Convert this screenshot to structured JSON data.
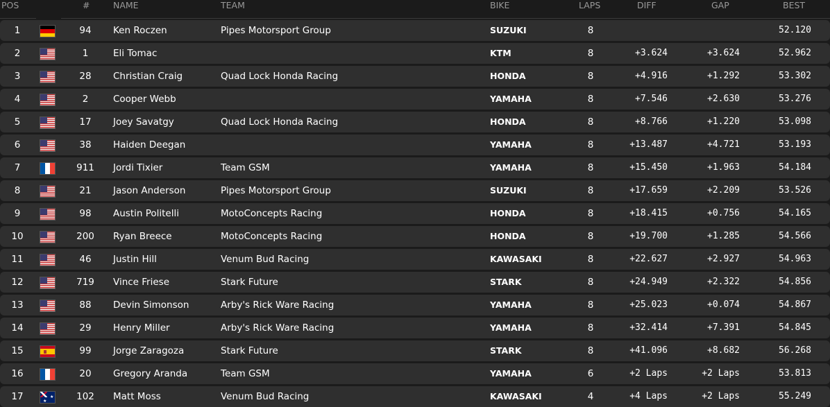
{
  "columns": {
    "pos": "POS",
    "num": "#",
    "name": "NAME",
    "team": "TEAM",
    "bike": "BIKE",
    "laps": "LAPS",
    "diff": "DIFF",
    "gap": "GAP",
    "best": "BEST"
  },
  "rows": [
    {
      "pos": "1",
      "flag": "de",
      "num": "94",
      "name": "Ken Roczen",
      "team": "Pipes Motorsport Group",
      "bike": "SUZUKI",
      "laps": "8",
      "diff": "",
      "gap": "",
      "best": "52.120"
    },
    {
      "pos": "2",
      "flag": "us",
      "num": "1",
      "name": "Eli Tomac",
      "team": "",
      "bike": "KTM",
      "laps": "8",
      "diff": "+3.624",
      "gap": "+3.624",
      "best": "52.962"
    },
    {
      "pos": "3",
      "flag": "us",
      "num": "28",
      "name": "Christian Craig",
      "team": "Quad Lock Honda Racing",
      "bike": "HONDA",
      "laps": "8",
      "diff": "+4.916",
      "gap": "+1.292",
      "best": "53.302"
    },
    {
      "pos": "4",
      "flag": "us",
      "num": "2",
      "name": "Cooper Webb",
      "team": "",
      "bike": "YAMAHA",
      "laps": "8",
      "diff": "+7.546",
      "gap": "+2.630",
      "best": "53.276"
    },
    {
      "pos": "5",
      "flag": "us",
      "num": "17",
      "name": "Joey Savatgy",
      "team": "Quad Lock Honda Racing",
      "bike": "HONDA",
      "laps": "8",
      "diff": "+8.766",
      "gap": "+1.220",
      "best": "53.098"
    },
    {
      "pos": "6",
      "flag": "us",
      "num": "38",
      "name": "Haiden Deegan",
      "team": "",
      "bike": "YAMAHA",
      "laps": "8",
      "diff": "+13.487",
      "gap": "+4.721",
      "best": "53.193"
    },
    {
      "pos": "7",
      "flag": "fr",
      "num": "911",
      "name": "Jordi Tixier",
      "team": "Team GSM",
      "bike": "YAMAHA",
      "laps": "8",
      "diff": "+15.450",
      "gap": "+1.963",
      "best": "54.184"
    },
    {
      "pos": "8",
      "flag": "us",
      "num": "21",
      "name": "Jason Anderson",
      "team": "Pipes Motorsport Group",
      "bike": "SUZUKI",
      "laps": "8",
      "diff": "+17.659",
      "gap": "+2.209",
      "best": "53.526"
    },
    {
      "pos": "9",
      "flag": "us",
      "num": "98",
      "name": "Austin Politelli",
      "team": "MotoConcepts Racing",
      "bike": "HONDA",
      "laps": "8",
      "diff": "+18.415",
      "gap": "+0.756",
      "best": "54.165"
    },
    {
      "pos": "10",
      "flag": "us",
      "num": "200",
      "name": "Ryan Breece",
      "team": "MotoConcepts Racing",
      "bike": "HONDA",
      "laps": "8",
      "diff": "+19.700",
      "gap": "+1.285",
      "best": "54.566"
    },
    {
      "pos": "11",
      "flag": "us",
      "num": "46",
      "name": "Justin Hill",
      "team": "Venum Bud Racing",
      "bike": "KAWASAKI",
      "laps": "8",
      "diff": "+22.627",
      "gap": "+2.927",
      "best": "54.963"
    },
    {
      "pos": "12",
      "flag": "us",
      "num": "719",
      "name": "Vince Friese",
      "team": "Stark Future",
      "bike": "STARK",
      "laps": "8",
      "diff": "+24.949",
      "gap": "+2.322",
      "best": "54.856"
    },
    {
      "pos": "13",
      "flag": "us",
      "num": "88",
      "name": "Devin Simonson",
      "team": "Arby's Rick Ware Racing",
      "bike": "YAMAHA",
      "laps": "8",
      "diff": "+25.023",
      "gap": "+0.074",
      "best": "54.867"
    },
    {
      "pos": "14",
      "flag": "us",
      "num": "29",
      "name": "Henry Miller",
      "team": "Arby's Rick Ware Racing",
      "bike": "YAMAHA",
      "laps": "8",
      "diff": "+32.414",
      "gap": "+7.391",
      "best": "54.845"
    },
    {
      "pos": "15",
      "flag": "es",
      "num": "99",
      "name": "Jorge Zaragoza",
      "team": "Stark Future",
      "bike": "STARK",
      "laps": "8",
      "diff": "+41.096",
      "gap": "+8.682",
      "best": "56.268"
    },
    {
      "pos": "16",
      "flag": "fr",
      "num": "20",
      "name": "Gregory Aranda",
      "team": "Team GSM",
      "bike": "YAMAHA",
      "laps": "6",
      "diff": "+2 Laps",
      "gap": "+2 Laps",
      "best": "53.813"
    },
    {
      "pos": "17",
      "flag": "au",
      "num": "102",
      "name": "Matt Moss",
      "team": "Venum Bud Racing",
      "bike": "KAWASAKI",
      "laps": "4",
      "diff": "+4 Laps",
      "gap": "+2 Laps",
      "best": "55.249"
    }
  ]
}
